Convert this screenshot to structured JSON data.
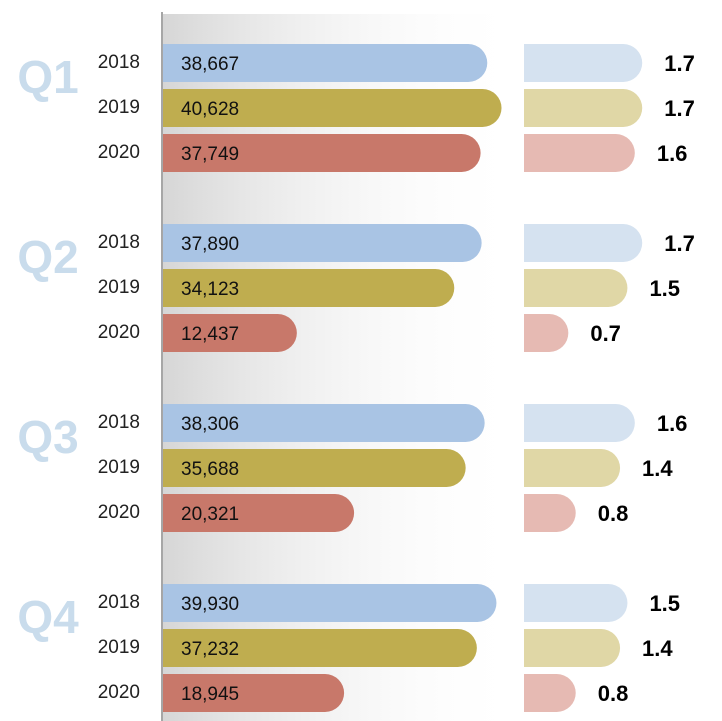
{
  "chart_data": [
    {
      "type": "bar",
      "categories": [
        "Q1",
        "Q2",
        "Q3",
        "Q4"
      ],
      "xlim": [
        -6000,
        44000
      ],
      "series": [
        {
          "name": "2018",
          "color": "#a9c4e4",
          "values": [
            38667,
            37890,
            38306,
            39930
          ],
          "value_labels": [
            "38,667",
            "37,890",
            "38,306",
            "39,930"
          ]
        },
        {
          "name": "2019",
          "color": "#bfad4f",
          "values": [
            40628,
            34123,
            35688,
            37232
          ],
          "value_labels": [
            "40,628",
            "34,123",
            "35,688",
            "37,232"
          ]
        },
        {
          "name": "2020",
          "color": "#c8786a",
          "values": [
            37749,
            12437,
            20321,
            18945
          ],
          "value_labels": [
            "37,749",
            "12,437",
            "20,321",
            "18,945"
          ]
        }
      ]
    },
    {
      "type": "bar",
      "xlim": [
        0.1,
        1.9
      ],
      "series": [
        {
          "color": "#d5e2f0",
          "values": [
            1.7,
            1.7,
            1.6,
            1.5
          ]
        },
        {
          "color": "#e0d7a6",
          "values": [
            1.7,
            1.5,
            1.4,
            1.4
          ]
        },
        {
          "color": "#e6bab3",
          "values": [
            1.6,
            0.7,
            0.8,
            0.8
          ]
        }
      ]
    }
  ]
}
